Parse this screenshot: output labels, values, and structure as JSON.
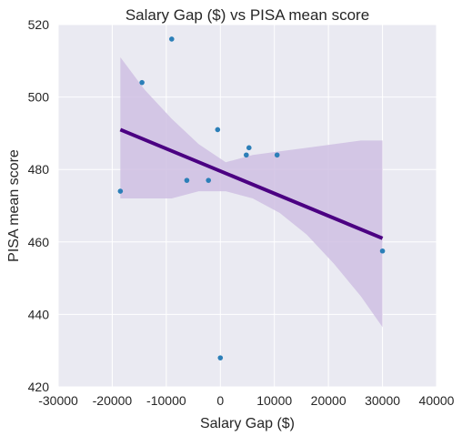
{
  "chart_data": {
    "type": "scatter",
    "title": "Salary Gap ($) vs PISA mean score",
    "xlabel": "Salary Gap ($)",
    "ylabel": "PISA mean score",
    "xlim": [
      -30000,
      40000
    ],
    "ylim": [
      420,
      520
    ],
    "x_ticks": [
      -30000,
      -20000,
      -10000,
      0,
      10000,
      20000,
      30000,
      40000
    ],
    "y_ticks": [
      420,
      440,
      460,
      480,
      500,
      520
    ],
    "grid": true,
    "points": [
      {
        "x": -18500,
        "y": 474
      },
      {
        "x": -14500,
        "y": 504
      },
      {
        "x": -9000,
        "y": 516
      },
      {
        "x": -6200,
        "y": 477
      },
      {
        "x": -2200,
        "y": 477
      },
      {
        "x": -500,
        "y": 491
      },
      {
        "x": 0,
        "y": 428
      },
      {
        "x": 4800,
        "y": 484
      },
      {
        "x": 5300,
        "y": 486
      },
      {
        "x": 10500,
        "y": 484
      },
      {
        "x": 30000,
        "y": 457.5
      }
    ],
    "regression": {
      "x": [
        -18500,
        30000
      ],
      "y": [
        491,
        461
      ]
    },
    "confidence_band": {
      "x": [
        -18500,
        -14000,
        -9000,
        -4000,
        1000,
        6000,
        11000,
        16000,
        21000,
        26000,
        30000
      ],
      "upper": [
        511,
        502,
        494,
        487,
        482,
        484,
        485,
        486,
        487,
        488,
        488
      ],
      "lower": [
        472,
        472,
        472,
        474,
        474,
        472,
        468,
        462,
        454,
        445,
        436.5
      ]
    },
    "colors": {
      "background": "#eaeaf2",
      "grid": "#ffffff",
      "points": "#2c7fb8",
      "line": "#4b0082",
      "band": "#cfc0e3"
    }
  }
}
